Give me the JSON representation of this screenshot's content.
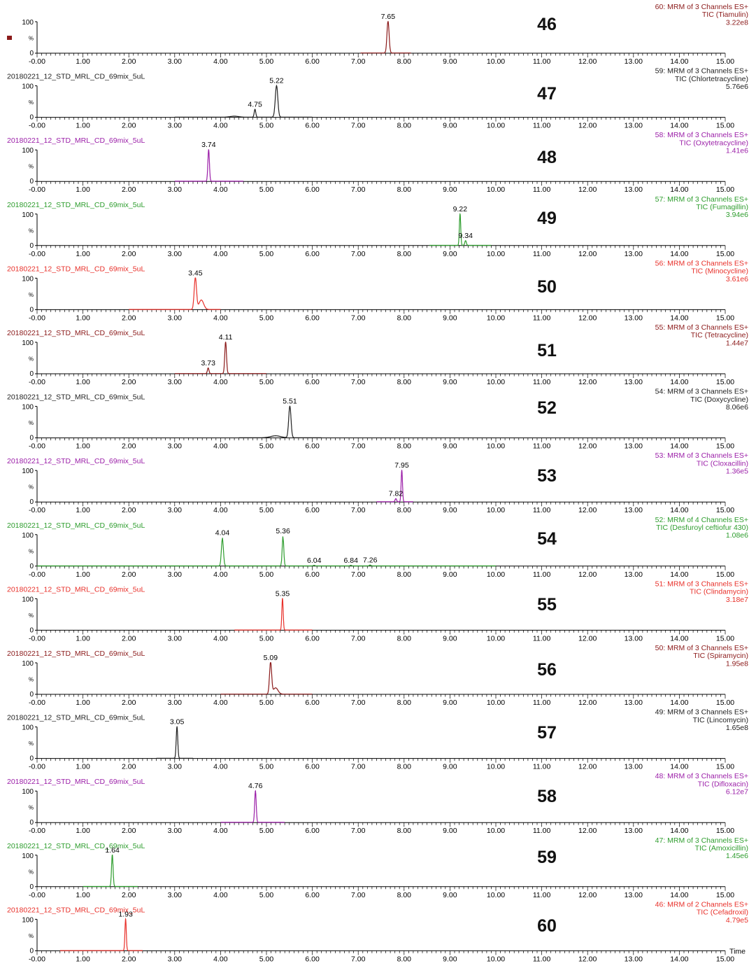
{
  "colors": {
    "black": "#222222",
    "dark_red": "#8b1a1a",
    "purple": "#9b1fa8",
    "green": "#2e9d2e",
    "red": "#e8302a",
    "axis": "#000000"
  },
  "x_axis": {
    "min": 0,
    "max": 15,
    "ticks": [
      "-0.00",
      "1.00",
      "2.00",
      "3.00",
      "4.00",
      "5.00",
      "6.00",
      "7.00",
      "8.00",
      "9.00",
      "10.00",
      "11.00",
      "12.00",
      "13.00",
      "14.00",
      "15.00"
    ],
    "label": "Time"
  },
  "y_axis": {
    "ticks": [
      "0",
      "%",
      "100"
    ]
  },
  "legend_marker": {
    "color": "dark_red"
  },
  "chart_data": [
    {
      "type": "line",
      "number": "46",
      "color": "dark_red",
      "file": "",
      "header": [
        "60: MRM of 3 Channels ES+",
        "TIC (Tiamulin)",
        "3.22e8"
      ],
      "x_range": [
        7.05,
        8.15
      ],
      "peaks": [
        {
          "rt": 7.65,
          "height": 100,
          "width": 0.055,
          "label": "7.65"
        }
      ]
    },
    {
      "type": "line",
      "number": "47",
      "color": "black",
      "file": "20180221_12_STD_MRL_CD_69mix_5uL",
      "header": [
        "59: MRM of 3 Channels ES+",
        "TIC (Chlortetracycline)",
        "5.76e6"
      ],
      "x_range": [
        3.0,
        6.0
      ],
      "peaks": [
        {
          "rt": 4.75,
          "height": 25,
          "width": 0.04,
          "label": "4.75"
        },
        {
          "rt": 5.22,
          "height": 100,
          "width": 0.065,
          "label": "5.22"
        },
        {
          "rt": 4.3,
          "height": 3,
          "width": 0.2,
          "label": ""
        }
      ]
    },
    {
      "type": "line",
      "number": "48",
      "color": "purple",
      "file": "20180221_12_STD_MRL_CD_69mix_5uL",
      "header": [
        "58: MRM of 3 Channels ES+",
        "TIC (Oxytetracycline)",
        "1.41e6"
      ],
      "x_range": [
        3.0,
        4.5
      ],
      "peaks": [
        {
          "rt": 3.74,
          "height": 100,
          "width": 0.04,
          "label": "3.74"
        }
      ]
    },
    {
      "type": "line",
      "number": "49",
      "color": "green",
      "file": "20180221_12_STD_MRL_CD_69mix_5uL",
      "header": [
        "57: MRM of 3 Channels ES+",
        "TIC (Fumagillin)",
        "3.94e6"
      ],
      "x_range": [
        8.55,
        9.9
      ],
      "peaks": [
        {
          "rt": 9.22,
          "height": 100,
          "width": 0.035,
          "label": "9.22"
        },
        {
          "rt": 9.34,
          "height": 15,
          "width": 0.04,
          "label": "9.34"
        }
      ]
    },
    {
      "type": "line",
      "number": "50",
      "color": "red",
      "file": "20180221_12_STD_MRL_CD_69mix_5uL",
      "header": [
        "56: MRM of 3 Channels ES+",
        "TIC (Minocycline)",
        "3.61e6"
      ],
      "x_range": [
        2.0,
        4.0
      ],
      "peaks": [
        {
          "rt": 3.45,
          "height": 100,
          "width": 0.06,
          "label": "3.45"
        },
        {
          "rt": 3.58,
          "height": 30,
          "width": 0.12,
          "label": ""
        }
      ]
    },
    {
      "type": "line",
      "number": "51",
      "color": "dark_red",
      "file": "20180221_12_STD_MRL_CD_69mix_5uL",
      "header": [
        "55: MRM of 3 Channels ES+",
        "TIC (Tetracycline)",
        "1.44e7"
      ],
      "x_range": [
        3.0,
        5.0
      ],
      "peaks": [
        {
          "rt": 3.73,
          "height": 18,
          "width": 0.04,
          "label": "3.73"
        },
        {
          "rt": 4.11,
          "height": 100,
          "width": 0.045,
          "label": "4.11"
        }
      ]
    },
    {
      "type": "line",
      "number": "52",
      "color": "black",
      "file": "20180221_12_STD_MRL_CD_69mix_5uL",
      "header": [
        "54: MRM of 3 Channels ES+",
        "TIC (Doxycycline)",
        "8.06e6"
      ],
      "x_range": [
        4.4,
        6.2
      ],
      "peaks": [
        {
          "rt": 5.51,
          "height": 100,
          "width": 0.06,
          "label": "5.51"
        },
        {
          "rt": 5.2,
          "height": 6,
          "width": 0.25,
          "label": ""
        }
      ]
    },
    {
      "type": "line",
      "number": "53",
      "color": "purple",
      "file": "20180221_12_STD_MRL_CD_69mix_5uL",
      "header": [
        "53: MRM of 3 Channels ES+",
        "TIC (Cloxacillin)",
        "1.36e5"
      ],
      "x_range": [
        7.4,
        8.2
      ],
      "peaks": [
        {
          "rt": 7.95,
          "height": 100,
          "width": 0.035,
          "label": "7.95"
        },
        {
          "rt": 7.82,
          "height": 10,
          "width": 0.04,
          "label": "7.82"
        }
      ]
    },
    {
      "type": "line",
      "number": "54",
      "color": "green",
      "file": "20180221_12_STD_MRL_CD_69mix_5uL",
      "header": [
        "52: MRM of 4 Channels ES+",
        "TIC (Desfuroyl ceftiofur 430)",
        "1.08e6"
      ],
      "x_range": [
        0.0,
        10.0
      ],
      "peaks": [
        {
          "rt": 4.04,
          "height": 90,
          "width": 0.05,
          "label": "4.04"
        },
        {
          "rt": 5.36,
          "height": 95,
          "width": 0.04,
          "label": "5.36"
        },
        {
          "rt": 6.04,
          "height": 2,
          "width": 0.04,
          "label": "6.04"
        },
        {
          "rt": 6.84,
          "height": 2,
          "width": 0.04,
          "label": "6.84"
        },
        {
          "rt": 7.26,
          "height": 3,
          "width": 0.04,
          "label": "7.26"
        }
      ]
    },
    {
      "type": "line",
      "number": "55",
      "color": "red",
      "file": "20180221_12_STD_MRL_CD_69mix_5uL",
      "header": [
        "51: MRM of 3 Channels ES+",
        "TIC (Clindamycin)",
        "3.18e7"
      ],
      "x_range": [
        4.3,
        6.0
      ],
      "peaks": [
        {
          "rt": 5.35,
          "height": 100,
          "width": 0.035,
          "label": "5.35"
        }
      ]
    },
    {
      "type": "line",
      "number": "56",
      "color": "dark_red",
      "file": "20180221_12_STD_MRL_CD_69mix_5uL",
      "header": [
        "50: MRM of 3 Channels ES+",
        "TIC (Spiramycin)",
        "1.95e8"
      ],
      "x_range": [
        4.0,
        6.0
      ],
      "peaks": [
        {
          "rt": 5.09,
          "height": 100,
          "width": 0.055,
          "label": "5.09"
        },
        {
          "rt": 5.2,
          "height": 20,
          "width": 0.12,
          "label": ""
        }
      ]
    },
    {
      "type": "line",
      "number": "57",
      "color": "black",
      "file": "20180221_12_STD_MRL_CD_69mix_5uL",
      "header": [
        "49: MRM of 3 Channels ES+",
        "TIC (Lincomycin)",
        "1.65e8"
      ],
      "x_range": [
        2.6,
        3.4
      ],
      "peaks": [
        {
          "rt": 3.05,
          "height": 100,
          "width": 0.04,
          "label": "3.05"
        }
      ]
    },
    {
      "type": "line",
      "number": "58",
      "color": "purple",
      "file": "20180221_12_STD_MRL_CD_69mix_5uL",
      "header": [
        "48: MRM of 3 Channels ES+",
        "TIC (Difloxacin)",
        "6.12e7"
      ],
      "x_range": [
        4.0,
        5.4
      ],
      "peaks": [
        {
          "rt": 4.76,
          "height": 100,
          "width": 0.04,
          "label": "4.76"
        }
      ]
    },
    {
      "type": "line",
      "number": "59",
      "color": "green",
      "file": "20180221_12_STD_MRL_CD_69mix_5uL",
      "header": [
        "47: MRM of 3 Channels ES+",
        "TIC (Amoxicillin)",
        "1.45e6"
      ],
      "x_range": [
        1.0,
        2.2
      ],
      "peaks": [
        {
          "rt": 1.64,
          "height": 100,
          "width": 0.04,
          "label": "1.64"
        }
      ]
    },
    {
      "type": "line",
      "number": "60",
      "color": "red",
      "file": "20180221_12_STD_MRL_CD_69mix_5uL",
      "header": [
        "46: MRM of 2 Channels ES+",
        "TIC (Cefadroxil)",
        "4.79e5"
      ],
      "x_range": [
        0.5,
        2.3
      ],
      "peaks": [
        {
          "rt": 1.93,
          "height": 100,
          "width": 0.035,
          "label": "1.93"
        }
      ]
    }
  ]
}
